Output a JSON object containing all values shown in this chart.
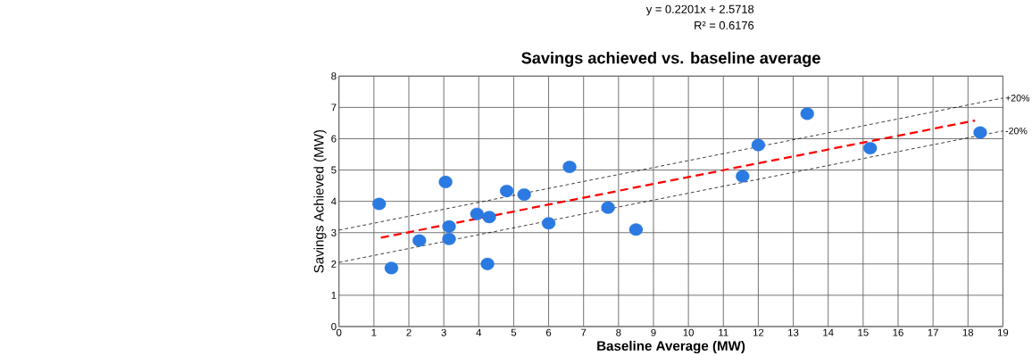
{
  "chart_data": {
    "type": "scatter",
    "title": "Savings achieved vs. baseline average",
    "xlabel": "Baseline Average (MW)",
    "ylabel": "Savings Achieved (MW)",
    "annotations": [
      "y = 0.2201x + 2.5718",
      "R² = 0.6176"
    ],
    "xlim": [
      0,
      19
    ],
    "xticks": [
      0,
      1,
      2,
      3,
      4,
      5,
      6,
      7,
      8,
      9,
      10,
      11,
      12,
      13,
      14,
      15,
      16,
      17,
      18,
      19
    ],
    "ylim": [
      0,
      8
    ],
    "yticks": [
      0,
      1,
      2,
      3,
      4,
      5,
      6,
      7,
      8
    ],
    "grid": true,
    "series": [
      {
        "marker": "circle",
        "color": "#2a7ae2",
        "x": [
          1.15,
          1.5,
          2.3,
          3.05,
          3.15,
          3.15,
          3.95,
          4.3,
          4.25,
          4.8,
          5.3,
          6.0,
          6.6,
          7.7,
          8.5,
          11.55,
          12.0,
          13.4,
          15.2,
          18.35
        ],
        "values": [
          3.92,
          1.87,
          2.75,
          4.62,
          3.2,
          2.8,
          3.6,
          3.5,
          2.0,
          4.33,
          4.22,
          3.3,
          5.1,
          3.8,
          3.1,
          4.8,
          5.8,
          6.8,
          5.7,
          6.2
        ]
      },
      {
        "type": "line",
        "color": "#ff0000",
        "line_style": "dashed",
        "x": [
          1.2,
          18.2
        ],
        "values": [
          2.84,
          6.58
        ]
      },
      {
        "type": "line",
        "name": "+20%",
        "color": "#000000",
        "line_style": "dotted",
        "x": [
          0,
          19
        ],
        "values": [
          3.08,
          7.3
        ]
      },
      {
        "type": "line",
        "name": "-20%",
        "color": "#000000",
        "line_style": "dotted",
        "x": [
          0,
          19
        ],
        "values": [
          2.05,
          6.25
        ]
      }
    ]
  }
}
